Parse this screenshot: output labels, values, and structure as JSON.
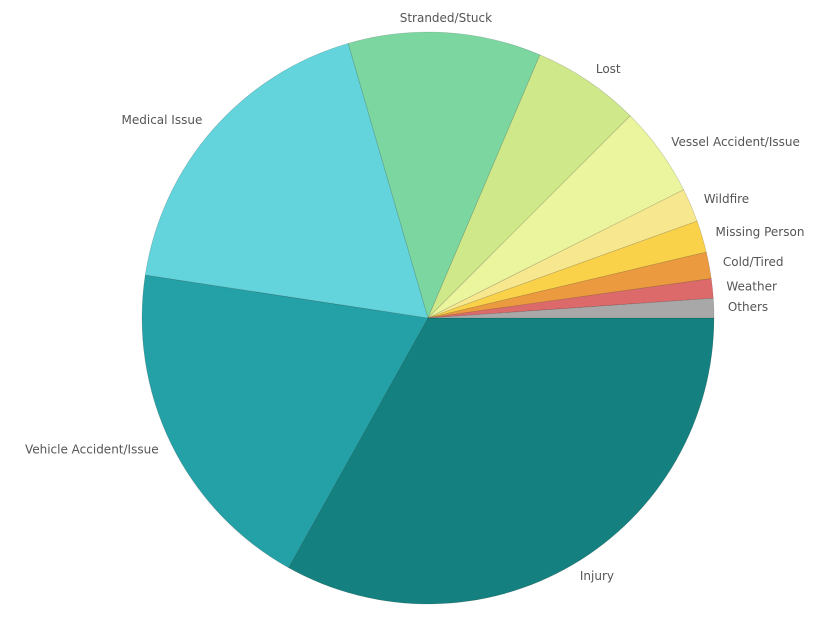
{
  "chart_data": {
    "type": "pie",
    "categories": [
      "Injury",
      "Vehicle Accident/Issue",
      "Medical Issue",
      "Stranded/Stuck",
      "Lost",
      "Vessel Accident/Issue",
      "Wildfire",
      "Missing Person",
      "Cold/Tired",
      "Weather",
      "Others"
    ],
    "values": [
      33.1,
      19.3,
      18.1,
      10.9,
      6.1,
      5.1,
      1.9,
      1.8,
      1.5,
      1.1,
      1.1
    ],
    "colors": [
      "#14807f",
      "#24a1a6",
      "#63d4db",
      "#7bd6a0",
      "#cfe88a",
      "#eaf59d",
      "#f7e88f",
      "#f9d24a",
      "#eb9a3f",
      "#dc6a6a",
      "#a8a8a8"
    ]
  }
}
